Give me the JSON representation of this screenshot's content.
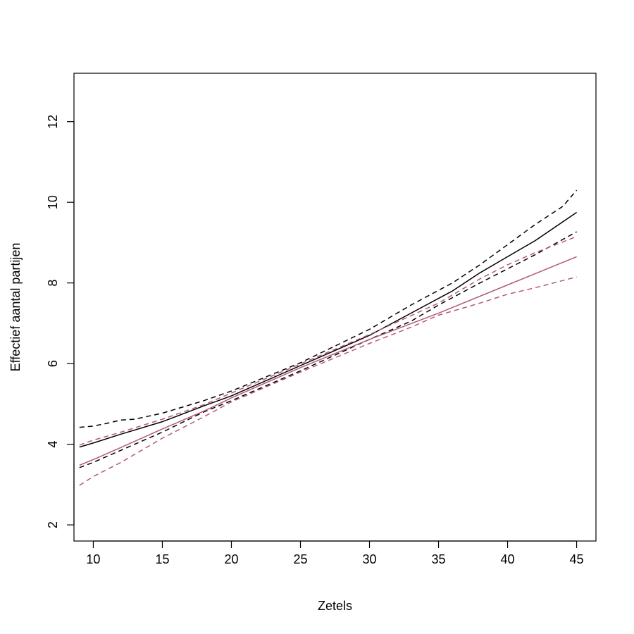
{
  "chart_data": {
    "type": "line",
    "title": "",
    "xlabel": "Zetels",
    "ylabel": "Effectief aantal partijen",
    "xlim": [
      8.6,
      46.4
    ],
    "ylim": [
      1.6,
      13.2
    ],
    "xticks": [
      10,
      15,
      20,
      25,
      30,
      35,
      40,
      45
    ],
    "yticks": [
      2,
      4,
      6,
      8,
      10,
      12
    ],
    "grid": false,
    "legend": "none",
    "series": [
      {
        "color": "#000000",
        "dash": "solid",
        "points": [
          [
            9,
            3.93
          ],
          [
            10,
            4.03
          ],
          [
            12,
            4.25
          ],
          [
            15,
            4.56
          ],
          [
            18,
            4.95
          ],
          [
            20,
            5.2
          ],
          [
            25,
            5.95
          ],
          [
            30,
            6.7
          ],
          [
            33,
            7.25
          ],
          [
            36,
            7.8
          ],
          [
            38,
            8.25
          ],
          [
            40,
            8.65
          ],
          [
            42,
            9.05
          ],
          [
            45,
            9.75
          ]
        ]
      },
      {
        "color": "#000000",
        "dash": "dashed",
        "points": [
          [
            9,
            4.42
          ],
          [
            10,
            4.45
          ],
          [
            11,
            4.52
          ],
          [
            12,
            4.6
          ],
          [
            13,
            4.62
          ],
          [
            15,
            4.77
          ],
          [
            18,
            5.08
          ],
          [
            20,
            5.32
          ],
          [
            25,
            6.02
          ],
          [
            30,
            6.85
          ],
          [
            33,
            7.45
          ],
          [
            36,
            8.0
          ],
          [
            38,
            8.45
          ],
          [
            40,
            8.95
          ],
          [
            42,
            9.45
          ],
          [
            44,
            9.9
          ],
          [
            45,
            10.3
          ]
        ]
      },
      {
        "color": "#000000",
        "dash": "dashed",
        "points": [
          [
            9,
            3.42
          ],
          [
            10,
            3.55
          ],
          [
            12,
            3.85
          ],
          [
            15,
            4.3
          ],
          [
            18,
            4.8
          ],
          [
            20,
            5.08
          ],
          [
            25,
            5.82
          ],
          [
            30,
            6.6
          ],
          [
            33,
            7.05
          ],
          [
            35,
            7.45
          ],
          [
            38,
            8.0
          ],
          [
            40,
            8.35
          ],
          [
            42,
            8.7
          ],
          [
            45,
            9.27
          ]
        ]
      },
      {
        "color": "#b35a73",
        "dash": "solid",
        "points": [
          [
            9,
            3.48
          ],
          [
            10,
            3.62
          ],
          [
            12,
            3.92
          ],
          [
            15,
            4.38
          ],
          [
            18,
            4.82
          ],
          [
            20,
            5.15
          ],
          [
            25,
            5.9
          ],
          [
            30,
            6.6
          ],
          [
            35,
            7.25
          ],
          [
            40,
            7.95
          ],
          [
            45,
            8.65
          ]
        ]
      },
      {
        "color": "#b35a73",
        "dash": "dashed",
        "points": [
          [
            9,
            3.98
          ],
          [
            10,
            4.1
          ],
          [
            12,
            4.3
          ],
          [
            15,
            4.62
          ],
          [
            18,
            4.98
          ],
          [
            20,
            5.27
          ],
          [
            25,
            5.99
          ],
          [
            30,
            6.72
          ],
          [
            35,
            7.5
          ],
          [
            38,
            8.1
          ],
          [
            40,
            8.45
          ],
          [
            42,
            8.75
          ],
          [
            45,
            9.15
          ]
        ]
      },
      {
        "color": "#b35a73",
        "dash": "dashed",
        "points": [
          [
            9,
            2.98
          ],
          [
            10,
            3.2
          ],
          [
            12,
            3.55
          ],
          [
            15,
            4.15
          ],
          [
            18,
            4.68
          ],
          [
            20,
            5.05
          ],
          [
            25,
            5.79
          ],
          [
            30,
            6.5
          ],
          [
            33,
            6.9
          ],
          [
            35,
            7.2
          ],
          [
            38,
            7.5
          ],
          [
            40,
            7.72
          ],
          [
            42,
            7.88
          ],
          [
            45,
            8.15
          ]
        ]
      }
    ]
  }
}
